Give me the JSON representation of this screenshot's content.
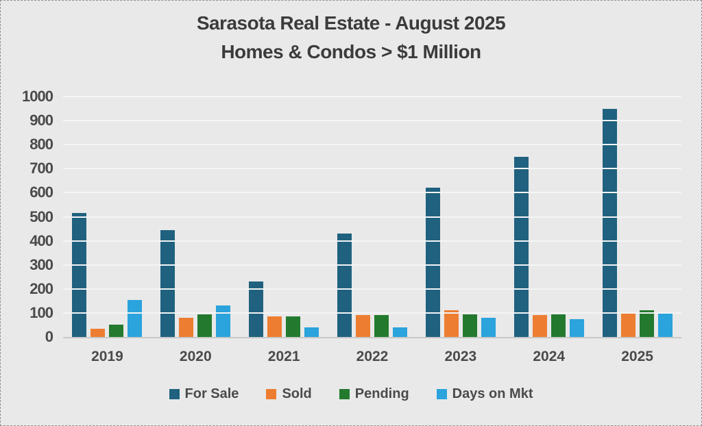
{
  "chart": {
    "title_line1": "Sarasota Real Estate - August 2025",
    "title_line2": "Homes & Condos > $1 Million"
  },
  "chart_data": {
    "type": "bar",
    "title": "Sarasota Real Estate - August 2025",
    "subtitle": "Homes & Condos > $1 Million",
    "categories": [
      "2019",
      "2020",
      "2021",
      "2022",
      "2023",
      "2024",
      "2025"
    ],
    "series": [
      {
        "name": "For Sale",
        "color": "#1F617F",
        "values": [
          515,
          445,
          230,
          430,
          620,
          750,
          950
        ]
      },
      {
        "name": "Sold",
        "color": "#ED7D31",
        "values": [
          35,
          80,
          85,
          90,
          110,
          90,
          100
        ]
      },
      {
        "name": "Pending",
        "color": "#237A2E",
        "values": [
          50,
          95,
          85,
          90,
          95,
          95,
          110
        ]
      },
      {
        "name": "Days on Mkt",
        "color": "#2BA3DC",
        "values": [
          155,
          130,
          40,
          40,
          80,
          75,
          100
        ]
      }
    ],
    "xlabel": "",
    "ylabel": "",
    "ylim": [
      0,
      1000
    ],
    "ytick_step": 100,
    "grid": true,
    "legend_position": "bottom",
    "background_color": "#e9e9e9",
    "text_color": "#4a4a4a"
  }
}
